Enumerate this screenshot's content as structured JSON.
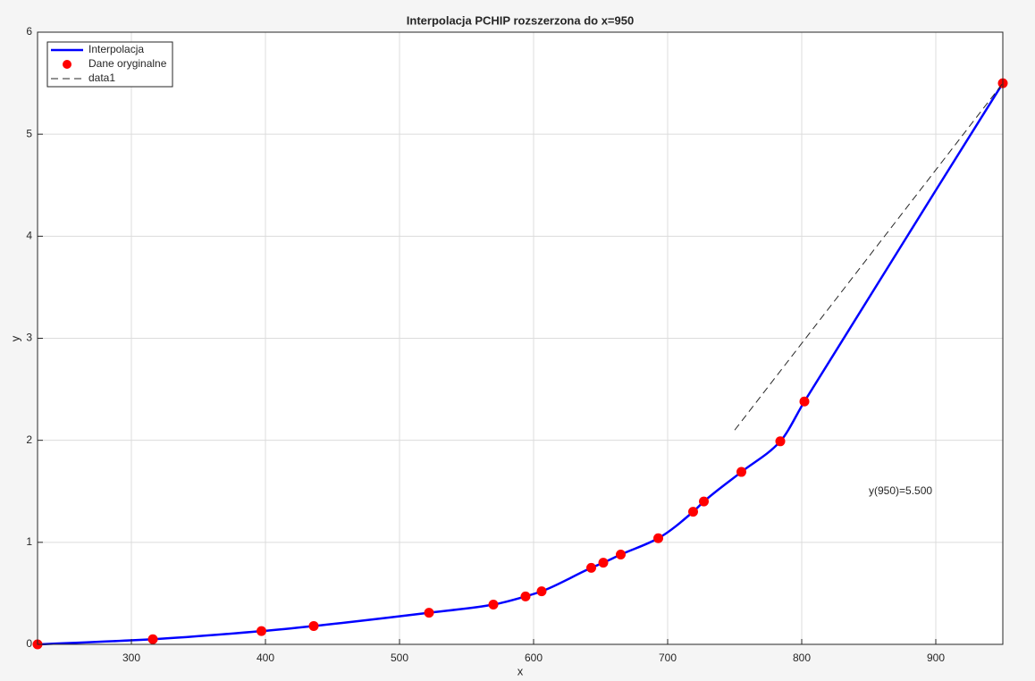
{
  "chart_data": {
    "type": "line",
    "title": "Interpolacja PCHIP rozszerzona do x=950",
    "xlabel": "x",
    "ylabel": "y",
    "xlim": [
      230,
      950
    ],
    "ylim": [
      0,
      6
    ],
    "xticks": [
      300,
      400,
      500,
      600,
      700,
      800,
      900
    ],
    "yticks": [
      0,
      1,
      2,
      3,
      4,
      5,
      6
    ],
    "grid": true,
    "legend": "upper left",
    "series": [
      {
        "name": "Interpolacja",
        "color": "#0000ff",
        "style": "pchip",
        "x": [
          230,
          316,
          397,
          436,
          522,
          570,
          594,
          606,
          643,
          652,
          665,
          693,
          719,
          727,
          755,
          784,
          802,
          950
        ],
        "values": [
          0,
          0.05,
          0.13,
          0.18,
          0.31,
          0.39,
          0.47,
          0.52,
          0.75,
          0.8,
          0.88,
          1.04,
          1.3,
          1.4,
          1.69,
          1.99,
          2.38,
          5.5
        ]
      },
      {
        "name": "Dane oryginalne",
        "color": "#ff0000",
        "style": "markers",
        "x": [
          230,
          316,
          397,
          436,
          522,
          570,
          594,
          606,
          643,
          652,
          665,
          693,
          719,
          727,
          755,
          784,
          802,
          950
        ],
        "values": [
          0,
          0.05,
          0.13,
          0.18,
          0.31,
          0.39,
          0.47,
          0.52,
          0.75,
          0.8,
          0.88,
          1.04,
          1.3,
          1.4,
          1.69,
          1.99,
          2.38,
          5.5
        ]
      },
      {
        "name": "data1",
        "color": "#262626",
        "style": "dashed",
        "x": [
          750,
          950
        ],
        "values": [
          2.1,
          5.5
        ]
      }
    ],
    "annotations": [
      {
        "text": "y(950)=5.500",
        "x": 850,
        "y": 1.5
      }
    ]
  }
}
